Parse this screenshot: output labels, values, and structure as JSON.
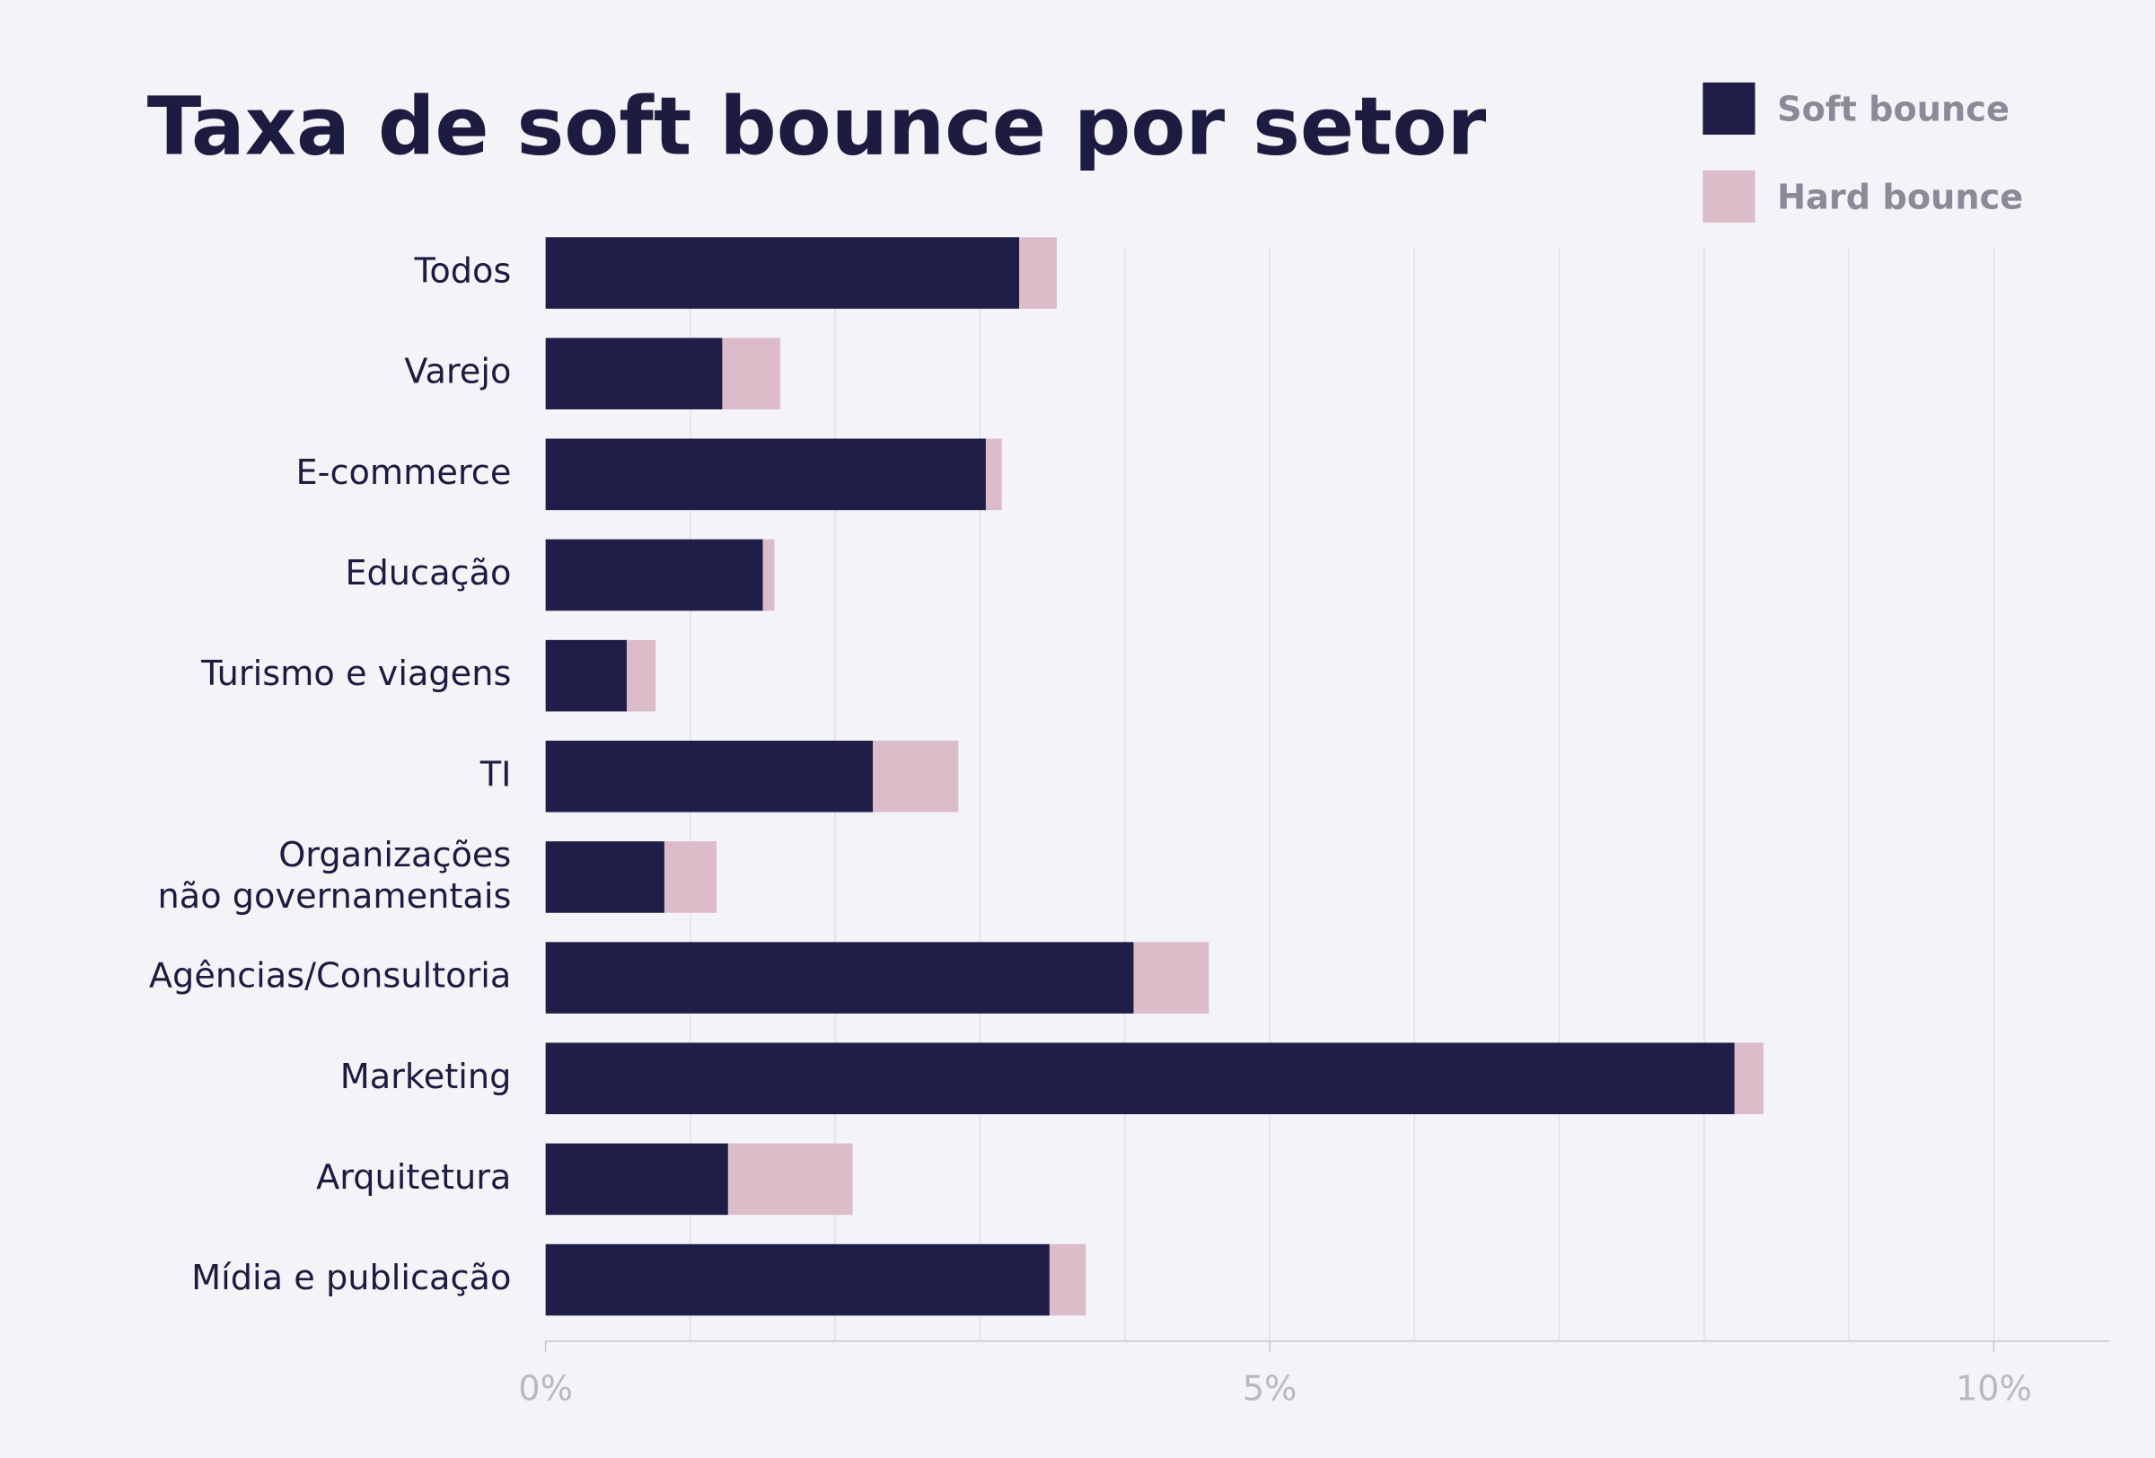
{
  "chart_data": {
    "type": "stacked-horizontal-bar",
    "title": "Taxa de soft bounce por setor",
    "categories": [
      "Todos",
      "Varejo",
      "E-commerce",
      "Educação",
      "Turismo e viagens",
      "TI",
      "Organizações\nnão governamentais",
      "Agências/Consultoria",
      "Marketing",
      "Arquitetura",
      "Mídia e publicação"
    ],
    "series": [
      {
        "name": "Soft bounce",
        "color": "#1e1e48",
        "values": [
          3.27,
          1.22,
          3.04,
          1.5,
          0.56,
          2.26,
          0.82,
          4.06,
          8.21,
          1.26,
          3.48
        ]
      },
      {
        "name": "Hard bounce",
        "color": "#dbbcc8",
        "values": [
          0.26,
          0.4,
          0.11,
          0.08,
          0.2,
          0.59,
          0.36,
          0.52,
          0.2,
          0.86,
          0.25
        ]
      }
    ],
    "xlim": [
      0,
      10.8
    ],
    "xticks": [
      {
        "value": 0,
        "label": "0%"
      },
      {
        "value": 5,
        "label": "5%"
      },
      {
        "value": 10,
        "label": "10%"
      }
    ],
    "xgrid": [
      1,
      2,
      3,
      4,
      5,
      6,
      7,
      8,
      9,
      10
    ],
    "grid": true,
    "legend": "top-right"
  }
}
